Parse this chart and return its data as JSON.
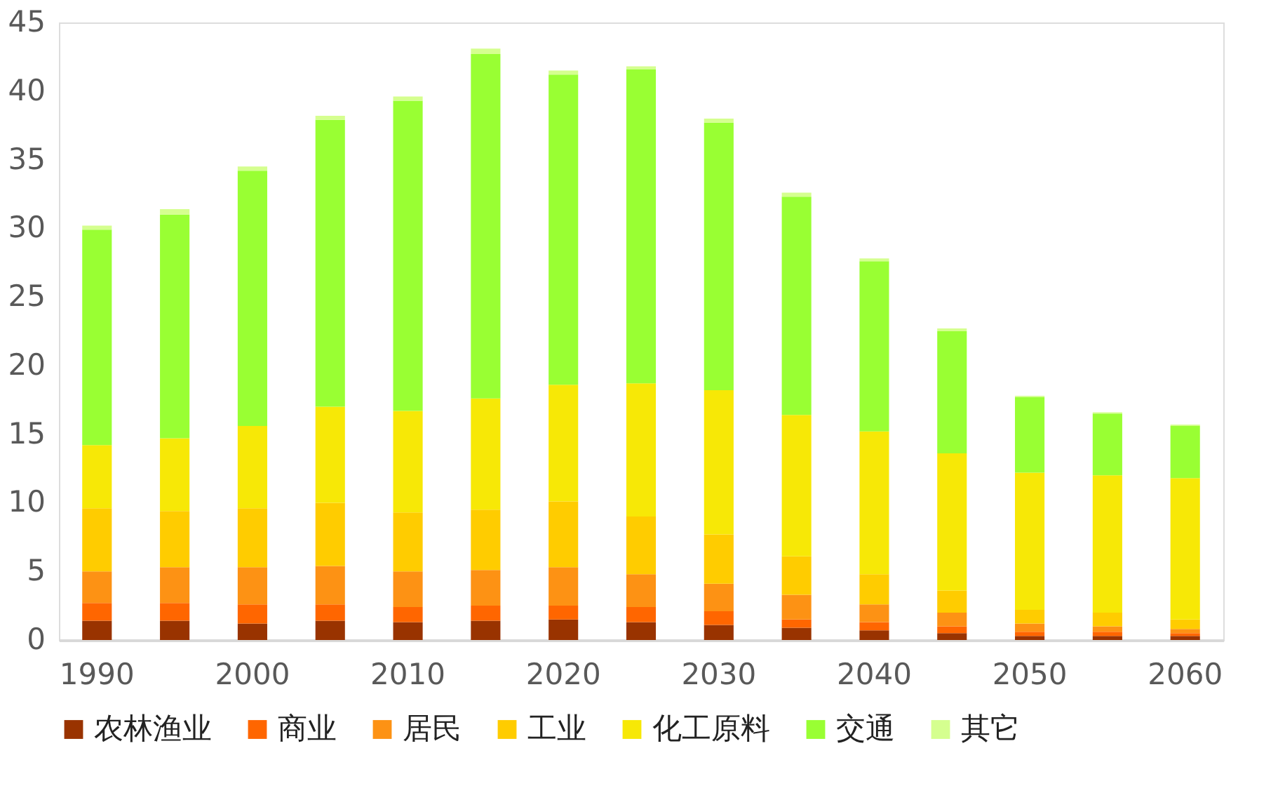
{
  "chart_data": {
    "type": "bar",
    "stacked": true,
    "categories": [
      "1990",
      null,
      "2000",
      null,
      "2010",
      null,
      "2020",
      null,
      "2030",
      null,
      "2040",
      null,
      "2050",
      null,
      "2060"
    ],
    "series": [
      {
        "name": "农林渔业",
        "color": "#993300",
        "values": [
          1.4,
          1.4,
          1.2,
          1.4,
          1.3,
          1.4,
          1.5,
          1.3,
          1.1,
          0.9,
          0.7,
          0.5,
          0.3,
          0.3,
          0.3
        ]
      },
      {
        "name": "商业",
        "color": "#ff6600",
        "values": [
          1.3,
          1.3,
          1.4,
          1.2,
          1.1,
          1.1,
          1.0,
          1.1,
          1.0,
          0.6,
          0.6,
          0.5,
          0.3,
          0.3,
          0.2
        ]
      },
      {
        "name": "居民",
        "color": "#fd9214",
        "values": [
          2.3,
          2.6,
          2.7,
          2.8,
          2.6,
          2.6,
          2.8,
          2.4,
          2.0,
          1.8,
          1.3,
          1.0,
          0.6,
          0.4,
          0.3
        ]
      },
      {
        "name": "工业",
        "color": "#ffcc00",
        "values": [
          4.6,
          4.1,
          4.3,
          4.6,
          4.3,
          4.4,
          4.8,
          4.2,
          3.6,
          2.8,
          2.2,
          1.6,
          1.0,
          1.0,
          0.7
        ]
      },
      {
        "name": "化工原料",
        "color": "#f7e806",
        "values": [
          4.6,
          5.3,
          6.0,
          7.0,
          7.4,
          8.1,
          8.5,
          9.7,
          10.5,
          10.3,
          10.4,
          10.0,
          10.0,
          10.0,
          10.3
        ]
      },
      {
        "name": "交通",
        "color": "#99ff33",
        "values": [
          15.7,
          16.3,
          18.6,
          20.9,
          22.6,
          25.1,
          22.6,
          22.9,
          19.5,
          15.9,
          12.4,
          8.9,
          5.5,
          4.5,
          3.8
        ]
      },
      {
        "name": "其它",
        "color": "#d5ff8f",
        "values": [
          0.3,
          0.4,
          0.3,
          0.3,
          0.3,
          0.4,
          0.3,
          0.2,
          0.3,
          0.3,
          0.2,
          0.2,
          0.1,
          0.1,
          0.1
        ]
      }
    ],
    "ylim": [
      0,
      45
    ],
    "yticks": [
      0,
      5,
      10,
      15,
      20,
      25,
      30,
      35,
      40,
      45
    ],
    "grid": false,
    "legend": "bottom"
  }
}
